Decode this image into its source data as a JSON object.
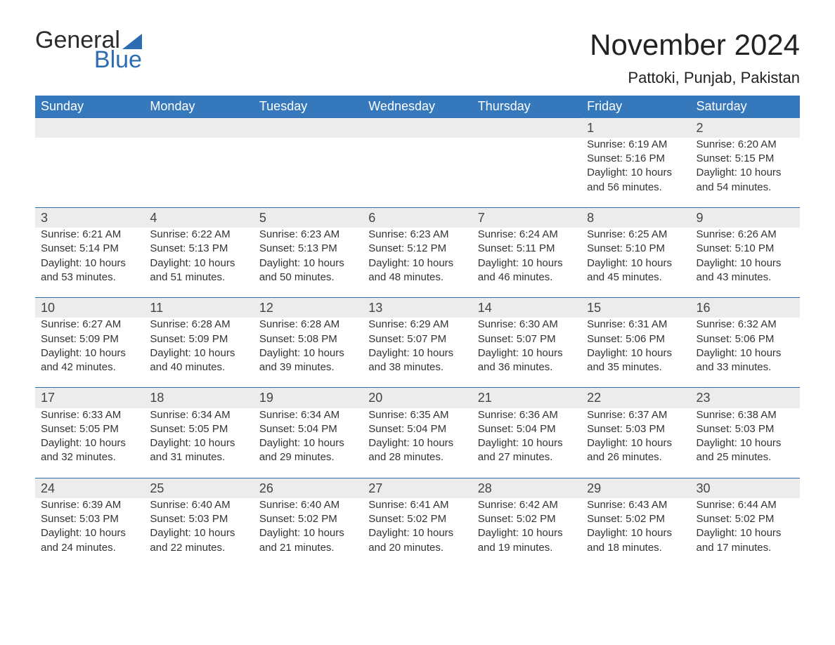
{
  "brand": {
    "word1": "General",
    "word2": "Blue",
    "accent_color": "#2d6cb1"
  },
  "title": "November 2024",
  "location": "Pattoki, Punjab, Pakistan",
  "calendar": {
    "type": "table",
    "columns": [
      "Sunday",
      "Monday",
      "Tuesday",
      "Wednesday",
      "Thursday",
      "Friday",
      "Saturday"
    ],
    "header_bg": "#3678bc",
    "header_text_color": "#ffffff",
    "daynum_bg": "#ececec",
    "row_border_color": "#2d6cb1",
    "body_text_color": "#333333",
    "fontsize_header": 18,
    "fontsize_daynum": 18,
    "fontsize_body": 15,
    "weeks": [
      {
        "days": [
          {
            "day": "",
            "lines": []
          },
          {
            "day": "",
            "lines": []
          },
          {
            "day": "",
            "lines": []
          },
          {
            "day": "",
            "lines": []
          },
          {
            "day": "",
            "lines": []
          },
          {
            "day": "1",
            "lines": [
              "Sunrise: 6:19 AM",
              "Sunset: 5:16 PM",
              "Daylight: 10 hours and 56 minutes."
            ]
          },
          {
            "day": "2",
            "lines": [
              "Sunrise: 6:20 AM",
              "Sunset: 5:15 PM",
              "Daylight: 10 hours and 54 minutes."
            ]
          }
        ]
      },
      {
        "days": [
          {
            "day": "3",
            "lines": [
              "Sunrise: 6:21 AM",
              "Sunset: 5:14 PM",
              "Daylight: 10 hours and 53 minutes."
            ]
          },
          {
            "day": "4",
            "lines": [
              "Sunrise: 6:22 AM",
              "Sunset: 5:13 PM",
              "Daylight: 10 hours and 51 minutes."
            ]
          },
          {
            "day": "5",
            "lines": [
              "Sunrise: 6:23 AM",
              "Sunset: 5:13 PM",
              "Daylight: 10 hours and 50 minutes."
            ]
          },
          {
            "day": "6",
            "lines": [
              "Sunrise: 6:23 AM",
              "Sunset: 5:12 PM",
              "Daylight: 10 hours and 48 minutes."
            ]
          },
          {
            "day": "7",
            "lines": [
              "Sunrise: 6:24 AM",
              "Sunset: 5:11 PM",
              "Daylight: 10 hours and 46 minutes."
            ]
          },
          {
            "day": "8",
            "lines": [
              "Sunrise: 6:25 AM",
              "Sunset: 5:10 PM",
              "Daylight: 10 hours and 45 minutes."
            ]
          },
          {
            "day": "9",
            "lines": [
              "Sunrise: 6:26 AM",
              "Sunset: 5:10 PM",
              "Daylight: 10 hours and 43 minutes."
            ]
          }
        ]
      },
      {
        "days": [
          {
            "day": "10",
            "lines": [
              "Sunrise: 6:27 AM",
              "Sunset: 5:09 PM",
              "Daylight: 10 hours and 42 minutes."
            ]
          },
          {
            "day": "11",
            "lines": [
              "Sunrise: 6:28 AM",
              "Sunset: 5:09 PM",
              "Daylight: 10 hours and 40 minutes."
            ]
          },
          {
            "day": "12",
            "lines": [
              "Sunrise: 6:28 AM",
              "Sunset: 5:08 PM",
              "Daylight: 10 hours and 39 minutes."
            ]
          },
          {
            "day": "13",
            "lines": [
              "Sunrise: 6:29 AM",
              "Sunset: 5:07 PM",
              "Daylight: 10 hours and 38 minutes."
            ]
          },
          {
            "day": "14",
            "lines": [
              "Sunrise: 6:30 AM",
              "Sunset: 5:07 PM",
              "Daylight: 10 hours and 36 minutes."
            ]
          },
          {
            "day": "15",
            "lines": [
              "Sunrise: 6:31 AM",
              "Sunset: 5:06 PM",
              "Daylight: 10 hours and 35 minutes."
            ]
          },
          {
            "day": "16",
            "lines": [
              "Sunrise: 6:32 AM",
              "Sunset: 5:06 PM",
              "Daylight: 10 hours and 33 minutes."
            ]
          }
        ]
      },
      {
        "days": [
          {
            "day": "17",
            "lines": [
              "Sunrise: 6:33 AM",
              "Sunset: 5:05 PM",
              "Daylight: 10 hours and 32 minutes."
            ]
          },
          {
            "day": "18",
            "lines": [
              "Sunrise: 6:34 AM",
              "Sunset: 5:05 PM",
              "Daylight: 10 hours and 31 minutes."
            ]
          },
          {
            "day": "19",
            "lines": [
              "Sunrise: 6:34 AM",
              "Sunset: 5:04 PM",
              "Daylight: 10 hours and 29 minutes."
            ]
          },
          {
            "day": "20",
            "lines": [
              "Sunrise: 6:35 AM",
              "Sunset: 5:04 PM",
              "Daylight: 10 hours and 28 minutes."
            ]
          },
          {
            "day": "21",
            "lines": [
              "Sunrise: 6:36 AM",
              "Sunset: 5:04 PM",
              "Daylight: 10 hours and 27 minutes."
            ]
          },
          {
            "day": "22",
            "lines": [
              "Sunrise: 6:37 AM",
              "Sunset: 5:03 PM",
              "Daylight: 10 hours and 26 minutes."
            ]
          },
          {
            "day": "23",
            "lines": [
              "Sunrise: 6:38 AM",
              "Sunset: 5:03 PM",
              "Daylight: 10 hours and 25 minutes."
            ]
          }
        ]
      },
      {
        "days": [
          {
            "day": "24",
            "lines": [
              "Sunrise: 6:39 AM",
              "Sunset: 5:03 PM",
              "Daylight: 10 hours and 24 minutes."
            ]
          },
          {
            "day": "25",
            "lines": [
              "Sunrise: 6:40 AM",
              "Sunset: 5:03 PM",
              "Daylight: 10 hours and 22 minutes."
            ]
          },
          {
            "day": "26",
            "lines": [
              "Sunrise: 6:40 AM",
              "Sunset: 5:02 PM",
              "Daylight: 10 hours and 21 minutes."
            ]
          },
          {
            "day": "27",
            "lines": [
              "Sunrise: 6:41 AM",
              "Sunset: 5:02 PM",
              "Daylight: 10 hours and 20 minutes."
            ]
          },
          {
            "day": "28",
            "lines": [
              "Sunrise: 6:42 AM",
              "Sunset: 5:02 PM",
              "Daylight: 10 hours and 19 minutes."
            ]
          },
          {
            "day": "29",
            "lines": [
              "Sunrise: 6:43 AM",
              "Sunset: 5:02 PM",
              "Daylight: 10 hours and 18 minutes."
            ]
          },
          {
            "day": "30",
            "lines": [
              "Sunrise: 6:44 AM",
              "Sunset: 5:02 PM",
              "Daylight: 10 hours and 17 minutes."
            ]
          }
        ]
      }
    ]
  }
}
